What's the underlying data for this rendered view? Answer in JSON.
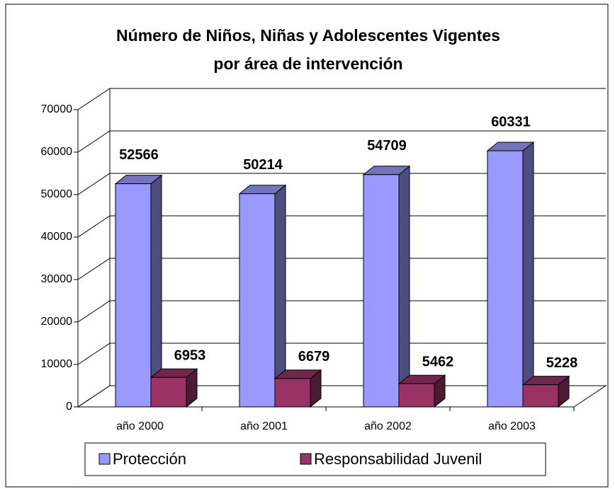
{
  "chart_data": {
    "type": "bar3d",
    "title": [
      "Número de Niños, Niñas y Adolescentes Vigentes",
      "por área de intervención"
    ],
    "categories": [
      "año 2000",
      "año 2001",
      "año 2002",
      "año 2003"
    ],
    "series": [
      {
        "name": "Protección",
        "color": "#9999ff",
        "values": [
          52566,
          50214,
          54709,
          60331
        ]
      },
      {
        "name": "Responsabilidad Juvenil",
        "color": "#993366",
        "values": [
          6953,
          6679,
          5462,
          5228
        ]
      }
    ],
    "ylim": [
      0,
      70000
    ],
    "yticks": [
      0,
      10000,
      20000,
      30000,
      40000,
      50000,
      60000,
      70000
    ],
    "grid": true,
    "legend": "bottom"
  }
}
